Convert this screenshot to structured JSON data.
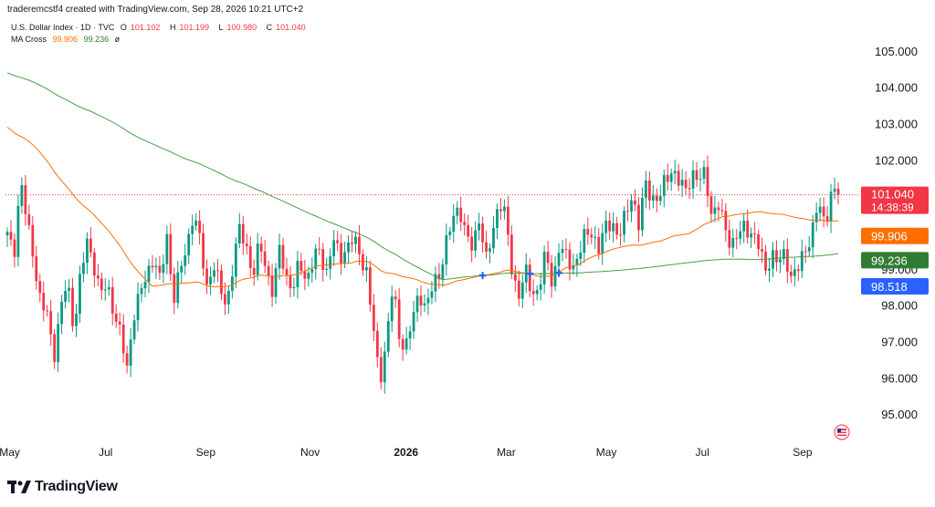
{
  "header": {
    "created_by": "traderemcstf4 created with TradingView.com, Sep 28, 2026 10:21 UTC+2"
  },
  "legend": {
    "symbol": "U.S. Dollar Index · 1D · TVC",
    "o_label": "O",
    "o_value": "101.102",
    "h_label": "H",
    "h_value": "101.199",
    "l_label": "L",
    "l_value": "100.980",
    "c_label": "C",
    "c_value": "101.040",
    "ma_label": "MA Cross",
    "ma_fast": "99.906",
    "ma_slow": "99.236",
    "ma_extra": "ø"
  },
  "footer": {
    "brand": "TradingView"
  },
  "colors": {
    "up": "#089981",
    "down": "#f23645",
    "ma_fast": "#ff6d00",
    "ma_slow": "#43a047",
    "cross": "#2962ff",
    "price_line": "#f23645",
    "grid_text": "#131722"
  },
  "chart_data": {
    "type": "candlestick",
    "symbol": "U.S. Dollar Index",
    "timeframe": "1D",
    "ylim": [
      94.6,
      105.4
    ],
    "y_ticks": [
      "95.000",
      "96.000",
      "97.000",
      "98.000",
      "99.000",
      "100.000",
      "101.000",
      "102.000",
      "103.000",
      "104.000",
      "105.000"
    ],
    "x_ticks": [
      "May",
      "Jul",
      "Sep",
      "Nov",
      "2026",
      "Mar",
      "May",
      "Jul",
      "Sep"
    ],
    "price_labels": {
      "last": "101.040",
      "countdown": "14:38:39",
      "ma_fast": "99.906",
      "ma_slow": "99.236",
      "marker": "98.518"
    },
    "close_path": [
      99.9,
      99.4,
      101.5,
      100.2,
      99.3,
      98.1,
      97.7,
      96.6,
      97.9,
      98.6,
      97.4,
      98.8,
      99.7,
      99.2,
      98.3,
      98.5,
      97.9,
      97.2,
      96.2,
      97.8,
      98.3,
      98.8,
      99.4,
      98.6,
      99.9,
      98.2,
      98.9,
      99.6,
      100.6,
      99.7,
      98.5,
      99.2,
      98.4,
      98.0,
      99.2,
      100.1,
      99.6,
      98.8,
      99.7,
      99.0,
      98.3,
      99.6,
      98.8,
      98.4,
      99.2,
      98.7,
      99.2,
      99.5,
      98.9,
      99.8,
      99.3,
      99.6,
      99.8,
      99.4,
      99.0,
      97.4,
      95.9,
      97.0,
      98.5,
      97.1,
      96.9,
      97.6,
      98.4,
      97.9,
      98.5,
      98.9,
      99.7,
      100.3,
      100.8,
      99.9,
      99.5,
      100.5,
      99.2,
      99.9,
      101.0,
      100.4,
      98.7,
      98.4,
      98.9,
      98.2,
      98.6,
      99.4,
      98.5,
      99.7,
      99.3,
      99.0,
      99.5,
      99.9,
      100.0,
      99.6,
      100.1,
      100.3,
      99.9,
      100.4,
      101.1,
      100.2,
      101.3,
      101.0,
      100.9,
      101.4,
      101.8,
      101.4,
      101.1,
      101.7,
      101.4,
      101.6,
      100.5,
      100.7,
      100.1,
      99.7,
      99.9,
      100.2,
      100.0,
      99.6,
      99.0,
      99.4,
      99.1,
      99.5,
      98.7,
      99.0,
      99.6,
      99.9,
      100.8,
      100.3,
      101.1,
      101.0
    ]
  }
}
